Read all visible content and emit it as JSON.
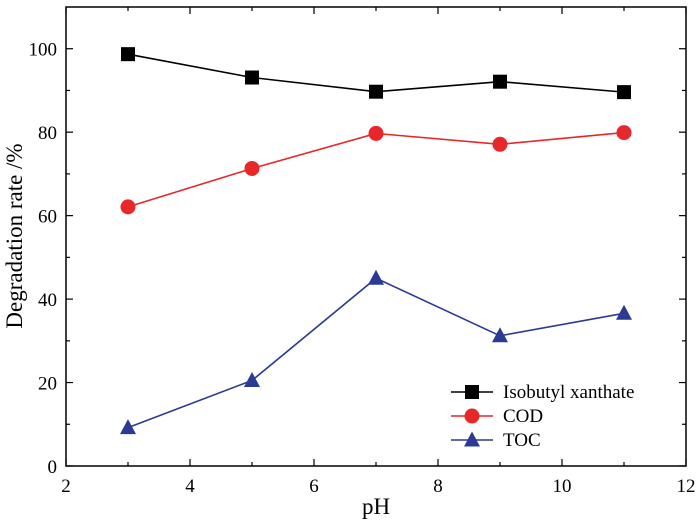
{
  "chart_data": {
    "type": "line",
    "xlabel": "pH",
    "ylabel": "Degradation rate /%",
    "xlim": [
      2,
      12
    ],
    "ylim": [
      0,
      110
    ],
    "xticks": [
      2,
      4,
      6,
      8,
      10,
      12
    ],
    "yticks": [
      0,
      20,
      40,
      60,
      80,
      100
    ],
    "grid": false,
    "legend_position": "bottom-right",
    "series": [
      {
        "name": "Isobutyl xanthate",
        "color": "#000000",
        "marker": "square",
        "x": [
          3,
          5,
          7,
          9,
          11
        ],
        "y": [
          98.7,
          93.1,
          89.7,
          92.1,
          89.6
        ]
      },
      {
        "name": "COD",
        "color": "#e8272a",
        "marker": "circle",
        "x": [
          3,
          5,
          7,
          9,
          11
        ],
        "y": [
          62.1,
          71.3,
          79.7,
          77.1,
          79.9
        ]
      },
      {
        "name": "TOC",
        "color": "#2b3a93",
        "marker": "triangle",
        "x": [
          3,
          5,
          7,
          9,
          11
        ],
        "y": [
          9.2,
          20.5,
          45.0,
          31.2,
          36.6
        ]
      }
    ]
  }
}
